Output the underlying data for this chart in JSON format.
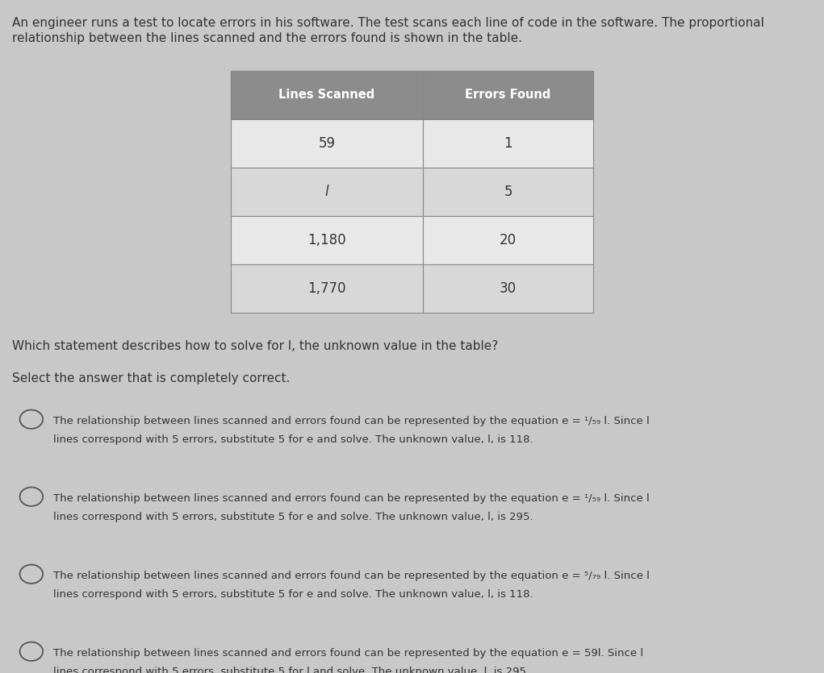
{
  "background_color": "#c8c8c8",
  "intro_text_line1": "An engineer runs a test to locate errors in his software. The test scans each line of code in the software. The proportional",
  "intro_text_line2": "relationship between the lines scanned and the errors found is shown in the table.",
  "table_headers": [
    "Lines Scanned",
    "Errors Found"
  ],
  "table_rows": [
    [
      "59",
      "1"
    ],
    [
      "l",
      "5"
    ],
    [
      "1,180",
      "20"
    ],
    [
      "1,770",
      "30"
    ]
  ],
  "table_italic_cells": [
    [
      1,
      0
    ]
  ],
  "question_text": "Which statement describes how to solve for l, the unknown value in the table?",
  "select_text": "Select the answer that is completely correct.",
  "choices": [
    {
      "line1": "The relationship between lines scanned and errors found can be represented by the equation e = ¹/₅₉ l. Since l",
      "line2": "lines correspond with 5 errors, substitute 5 for e and solve. The unknown value, l, is 118."
    },
    {
      "line1": "The relationship between lines scanned and errors found can be represented by the equation e = ¹/₅₉ l. Since l",
      "line2": "lines correspond with 5 errors, substitute 5 for e and solve. The unknown value, l, is 295."
    },
    {
      "line1": "The relationship between lines scanned and errors found can be represented by the equation e = ⁵/₇₉ l. Since l",
      "line2": "lines correspond with 5 errors, substitute 5 for e and solve. The unknown value, l, is 118."
    },
    {
      "line1": "The relationship between lines scanned and errors found can be represented by the equation e = 59l. Since l",
      "line2": "lines correspond with 5 errors, substitute 5 for l and solve. The unknown value, l, is 295."
    }
  ],
  "header_bg_color": "#8c8c8c",
  "header_text_color": "#ffffff",
  "row_bg_colors": [
    "#e8e8e8",
    "#d8d8d8"
  ],
  "table_border_color": "#888888",
  "text_color": "#333333",
  "circle_color": "#555555",
  "intro_fontsize": 11,
  "question_fontsize": 11,
  "table_header_fontsize": 10.5,
  "table_cell_fontsize": 12,
  "choice_fontsize": 9.5
}
